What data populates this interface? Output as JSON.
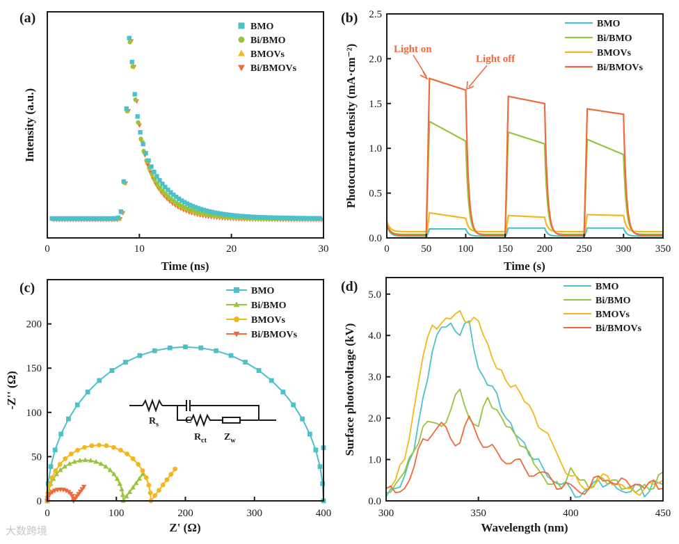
{
  "colors": {
    "BMO": "#4cc1c9",
    "Bi/BMO": "#97c43d",
    "BMOVs": "#f4b71b",
    "Bi/BMOVs": "#ef6a3b",
    "axis": "#1a1a1a"
  },
  "watermark": "大数跨境",
  "chart_data": [
    {
      "panel": "(a)",
      "type": "scatter",
      "title": "",
      "xlabel": "Time (ns)",
      "ylabel": "Intensity (a.u.)",
      "xlim": [
        0,
        30
      ],
      "xticks": [
        0,
        10,
        20,
        30
      ],
      "legend_position": "top-right",
      "series": [
        {
          "name": "BMO",
          "marker": "square",
          "peak": 1.0,
          "tau": 3.2
        },
        {
          "name": "Bi/BMO",
          "marker": "circle",
          "peak": 0.98,
          "tau": 2.7
        },
        {
          "name": "BMOVs",
          "marker": "triangle-up",
          "peak": 0.99,
          "tau": 2.6
        },
        {
          "name": "Bi/BMOVs",
          "marker": "triangle-down",
          "peak": 0.99,
          "tau": 2.4
        }
      ],
      "peak_time": 9.0,
      "baseline": 0.0
    },
    {
      "panel": "(b)",
      "type": "line",
      "title": "",
      "xlabel": "Time (s)",
      "ylabel": "Photocurrent density (mA·cm⁻²)",
      "xlim": [
        0,
        350
      ],
      "ylim": [
        0,
        2.5
      ],
      "xticks": [
        0,
        50,
        100,
        150,
        200,
        250,
        300,
        350
      ],
      "yticks": [
        0.0,
        0.5,
        1.0,
        1.5,
        2.0,
        2.5
      ],
      "legend_position": "top-right",
      "on_intervals": [
        [
          50,
          100
        ],
        [
          150,
          200
        ],
        [
          250,
          300
        ]
      ],
      "annotations": [
        {
          "text": "Light on",
          "x": 52,
          "y": 1.78
        },
        {
          "text": "Light off",
          "x": 100,
          "y": 1.65
        }
      ],
      "series": [
        {
          "name": "BMO",
          "cycles": [
            [
              0.1,
              0.1
            ],
            [
              0.11,
              0.11
            ],
            [
              0.11,
              0.11
            ]
          ]
        },
        {
          "name": "Bi/BMO",
          "cycles": [
            [
              1.3,
              1.08
            ],
            [
              1.18,
              1.05
            ],
            [
              1.1,
              0.93
            ]
          ]
        },
        {
          "name": "BMOVs",
          "cycles": [
            [
              0.28,
              0.22
            ],
            [
              0.25,
              0.23
            ],
            [
              0.26,
              0.25
            ]
          ]
        },
        {
          "name": "Bi/BMOVs",
          "cycles": [
            [
              1.78,
              1.65
            ],
            [
              1.58,
              1.5
            ],
            [
              1.44,
              1.38
            ]
          ]
        }
      ]
    },
    {
      "panel": "(c)",
      "type": "line",
      "title": "",
      "xlabel": "Z' (Ω)",
      "ylabel": "-Z'' (Ω)",
      "xlim": [
        0,
        400
      ],
      "ylim": [
        0,
        250
      ],
      "xticks": [
        0,
        100,
        200,
        300,
        400
      ],
      "yticks": [
        0,
        50,
        100,
        150,
        200
      ],
      "legend_position": "top-right",
      "series": [
        {
          "name": "BMO",
          "marker": "square",
          "arc_start": 0,
          "arc_end": 400,
          "arc_height": 174,
          "tail_to": [
            400,
            60
          ]
        },
        {
          "name": "Bi/BMO",
          "marker": "triangle-up",
          "arc_start": 0,
          "arc_end": 110,
          "arc_height": 46,
          "tail_to": [
            138,
            30
          ]
        },
        {
          "name": "BMOVs",
          "marker": "circle",
          "arc_start": 0,
          "arc_end": 150,
          "arc_height": 63,
          "tail_to": [
            185,
            36
          ]
        },
        {
          "name": "Bi/BMOVs",
          "marker": "triangle-down",
          "arc_start": 0,
          "arc_end": 38,
          "arc_height": 13,
          "tail_to": [
            53,
            16
          ]
        }
      ],
      "inset_labels": {
        "rs": "R",
        "rs_sub": "s",
        "c": "C",
        "rct": "R",
        "rct_sub": "ct",
        "zw": "Z",
        "zw_sub": "w"
      }
    },
    {
      "panel": "(d)",
      "type": "line",
      "title": "",
      "xlabel": "Wavelength (nm)",
      "ylabel": "Surface photovoltage (kV)",
      "xlim": [
        300,
        450
      ],
      "ylim": [
        0,
        5.4
      ],
      "xticks": [
        300,
        350,
        400,
        450
      ],
      "yticks": [
        0.0,
        1.0,
        2.0,
        3.0,
        4.0,
        5.0
      ],
      "legend_position": "top-right",
      "x": [
        300,
        305,
        310,
        315,
        320,
        325,
        330,
        335,
        340,
        345,
        350,
        355,
        360,
        365,
        370,
        375,
        380,
        385,
        390,
        395,
        400,
        405,
        410,
        415,
        420,
        425,
        430,
        435,
        440,
        445,
        450
      ],
      "series": [
        {
          "name": "BMO",
          "values": [
            0.1,
            0.3,
            0.6,
            1.2,
            2.5,
            3.6,
            4.2,
            4.3,
            4.0,
            4.35,
            3.2,
            2.8,
            2.6,
            2.0,
            1.6,
            1.4,
            1.0,
            0.8,
            0.5,
            0.4,
            0.3,
            0.1,
            0.3,
            0.5,
            0.4,
            0.3,
            0.2,
            0.4,
            0.1,
            0.5,
            0.4
          ]
        },
        {
          "name": "Bi/BMO",
          "values": [
            0.2,
            0.4,
            0.7,
            1.2,
            1.8,
            1.9,
            1.8,
            2.2,
            2.7,
            2.0,
            1.8,
            2.5,
            2.2,
            1.8,
            1.6,
            1.3,
            0.9,
            0.6,
            0.4,
            0.3,
            0.8,
            0.5,
            0.3,
            0.6,
            0.4,
            0.5,
            0.3,
            0.2,
            0.4,
            0.3,
            0.7
          ]
        },
        {
          "name": "BMOVs",
          "values": [
            0.3,
            0.5,
            1.0,
            2.2,
            3.5,
            4.25,
            4.3,
            4.4,
            4.6,
            4.3,
            4.35,
            3.8,
            3.2,
            2.9,
            2.8,
            2.4,
            2.1,
            1.7,
            1.4,
            0.9,
            0.6,
            0.4,
            0.3,
            0.5,
            0.6,
            0.4,
            0.3,
            0.2,
            0.3,
            0.4,
            0.5
          ]
        },
        {
          "name": "Bi/BMOVs",
          "values": [
            0.3,
            0.2,
            0.3,
            0.8,
            1.5,
            1.6,
            1.9,
            1.5,
            1.4,
            2.05,
            1.5,
            1.3,
            1.2,
            0.9,
            1.0,
            0.8,
            0.6,
            0.7,
            0.5,
            0.3,
            0.4,
            0.2,
            0.3,
            0.6,
            0.5,
            0.4,
            0.5,
            0.4,
            0.3,
            0.5,
            0.3
          ]
        }
      ]
    }
  ]
}
